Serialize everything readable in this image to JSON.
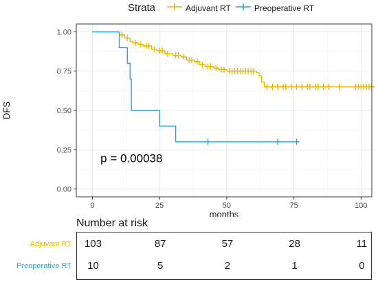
{
  "legend": {
    "title": "Strata",
    "items": [
      {
        "label": "Adjuvant RT",
        "color": "#E7B800"
      },
      {
        "label": "Preoperative RT",
        "color": "#2E9FDF"
      }
    ]
  },
  "chart_data": {
    "type": "line",
    "subtype": "kaplan-meier-step",
    "xlabel": "months",
    "ylabel": "DFS",
    "xlim": [
      -6,
      104
    ],
    "ylim": [
      -0.05,
      1.05
    ],
    "x_ticks": [
      0,
      25,
      50,
      75,
      100
    ],
    "y_ticks": [
      "0.00",
      "0.25",
      "0.50",
      "0.75",
      "1.00"
    ],
    "grid": true,
    "annotation": "p = 0.00038",
    "series": [
      {
        "name": "Adjuvant RT",
        "color": "#E7B800",
        "steps": [
          [
            0,
            1.0
          ],
          [
            10,
            0.98
          ],
          [
            12,
            0.96
          ],
          [
            14,
            0.94
          ],
          [
            15,
            0.93
          ],
          [
            17,
            0.92
          ],
          [
            19,
            0.91
          ],
          [
            22,
            0.89
          ],
          [
            24,
            0.88
          ],
          [
            27,
            0.86
          ],
          [
            30,
            0.85
          ],
          [
            33,
            0.84
          ],
          [
            35,
            0.82
          ],
          [
            38,
            0.81
          ],
          [
            40,
            0.79
          ],
          [
            42,
            0.78
          ],
          [
            45,
            0.77
          ],
          [
            47,
            0.76
          ],
          [
            50,
            0.75
          ],
          [
            61,
            0.74
          ],
          [
            62,
            0.72
          ],
          [
            63,
            0.68
          ],
          [
            64,
            0.65
          ],
          [
            105,
            0.65
          ]
        ],
        "censors": [
          [
            11,
            0.98
          ],
          [
            13,
            0.96
          ],
          [
            16,
            0.93
          ],
          [
            18,
            0.92
          ],
          [
            20,
            0.91
          ],
          [
            21,
            0.91
          ],
          [
            23,
            0.89
          ],
          [
            25,
            0.88
          ],
          [
            26,
            0.88
          ],
          [
            28,
            0.86
          ],
          [
            31,
            0.85
          ],
          [
            32,
            0.85
          ],
          [
            34,
            0.84
          ],
          [
            36,
            0.82
          ],
          [
            37,
            0.82
          ],
          [
            39,
            0.81
          ],
          [
            41,
            0.79
          ],
          [
            43,
            0.78
          ],
          [
            44,
            0.78
          ],
          [
            46,
            0.77
          ],
          [
            48,
            0.76
          ],
          [
            49,
            0.76
          ],
          [
            51,
            0.75
          ],
          [
            52,
            0.75
          ],
          [
            53,
            0.75
          ],
          [
            54,
            0.75
          ],
          [
            55,
            0.75
          ],
          [
            56,
            0.75
          ],
          [
            57,
            0.75
          ],
          [
            58,
            0.75
          ],
          [
            59,
            0.75
          ],
          [
            60,
            0.75
          ],
          [
            65,
            0.65
          ],
          [
            67,
            0.65
          ],
          [
            69,
            0.65
          ],
          [
            71,
            0.65
          ],
          [
            72,
            0.65
          ],
          [
            74,
            0.65
          ],
          [
            76,
            0.65
          ],
          [
            78,
            0.65
          ],
          [
            80,
            0.65
          ],
          [
            81,
            0.65
          ],
          [
            83,
            0.65
          ],
          [
            84,
            0.65
          ],
          [
            86,
            0.65
          ],
          [
            88,
            0.65
          ],
          [
            92,
            0.65
          ],
          [
            98,
            0.65
          ],
          [
            99,
            0.65
          ],
          [
            100,
            0.65
          ],
          [
            101,
            0.65
          ],
          [
            102,
            0.65
          ],
          [
            103,
            0.65
          ],
          [
            104,
            0.65
          ]
        ]
      },
      {
        "name": "Preoperative RT",
        "color": "#2E9FDF",
        "steps": [
          [
            0,
            1.0
          ],
          [
            10,
            0.9
          ],
          [
            13,
            0.8
          ],
          [
            14,
            0.7
          ],
          [
            14.5,
            0.5
          ],
          [
            25,
            0.4
          ],
          [
            31,
            0.3
          ],
          [
            76,
            0.3
          ]
        ],
        "censors": [
          [
            43,
            0.3
          ],
          [
            69,
            0.3
          ],
          [
            76,
            0.3
          ]
        ]
      }
    ]
  },
  "risk_table": {
    "title": "Number at risk",
    "rows": [
      {
        "label": "Adjuvant RT",
        "color": "#E7B800",
        "values": [
          "103",
          "87",
          "57",
          "28",
          "11"
        ]
      },
      {
        "label": "Preoperative RT",
        "color": "#2E9FDF",
        "values": [
          "10",
          "5",
          "2",
          "1",
          "0"
        ]
      }
    ]
  }
}
